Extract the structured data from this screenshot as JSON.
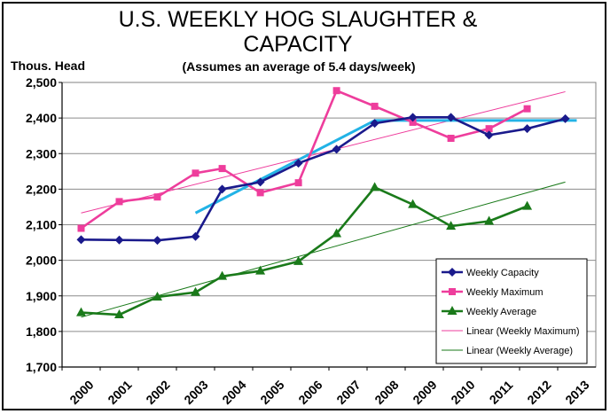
{
  "chart_data": {
    "type": "line",
    "title_line1": "U.S. WEEKLY HOG SLAUGHTER &",
    "title_line2": "CAPACITY",
    "subtitle": "(Assumes an average of 5.4 days/week)",
    "ylabel": "Thous. Head",
    "ylim": [
      1700,
      2500
    ],
    "yticks": [
      "1,700",
      "1,800",
      "1,900",
      "2,000",
      "2,100",
      "2,200",
      "2,300",
      "2,400",
      "2,500"
    ],
    "categories": [
      "2000",
      "2001",
      "2002",
      "2003",
      "2004",
      "2005",
      "2006",
      "2007",
      "2008",
      "2009",
      "2010",
      "2011",
      "2012",
      "2013"
    ],
    "grid": true,
    "legend_position": "bottom-right",
    "series": [
      {
        "name": "Weekly Capacity",
        "color": "#1a1a8c",
        "marker": "diamond",
        "points": [
          [
            0,
            2058
          ],
          [
            1,
            2057
          ],
          [
            2,
            2056
          ],
          [
            3,
            2067
          ],
          [
            3.7,
            2200
          ],
          [
            4.7,
            2220
          ],
          [
            5.7,
            2273
          ],
          [
            6.7,
            2312
          ],
          [
            7.7,
            2385
          ],
          [
            8.7,
            2402
          ],
          [
            9.7,
            2402
          ],
          [
            10.7,
            2352
          ],
          [
            11.7,
            2370
          ],
          [
            12.7,
            2398
          ]
        ]
      },
      {
        "name": "Weekly Maximum",
        "color": "#ee3d9c",
        "marker": "square",
        "points": [
          [
            0,
            2090
          ],
          [
            1,
            2165
          ],
          [
            2,
            2178
          ],
          [
            3,
            2245
          ],
          [
            3.7,
            2258
          ],
          [
            4.7,
            2190
          ],
          [
            5.7,
            2218
          ],
          [
            6.7,
            2477
          ],
          [
            7.7,
            2433
          ],
          [
            8.7,
            2388
          ],
          [
            9.7,
            2343
          ],
          [
            10.7,
            2370
          ],
          [
            11.7,
            2426
          ]
        ]
      },
      {
        "name": "Weekly Average",
        "color": "#1a7a1a",
        "marker": "triangle",
        "points": [
          [
            0,
            1853
          ],
          [
            1,
            1847
          ],
          [
            2,
            1897
          ],
          [
            3,
            1910
          ],
          [
            3.7,
            1955
          ],
          [
            4.7,
            1970
          ],
          [
            5.7,
            1997
          ],
          [
            6.7,
            2075
          ],
          [
            7.7,
            2205
          ],
          [
            8.7,
            2157
          ],
          [
            9.7,
            2096
          ],
          [
            10.7,
            2110
          ],
          [
            11.7,
            2152
          ]
        ]
      },
      {
        "name": "Linear (Weekly Maximum)",
        "color": "#ee3d9c",
        "marker": "none",
        "points": [
          [
            0,
            2133
          ],
          [
            12.7,
            2474
          ]
        ]
      },
      {
        "name": "Linear (Weekly Average)",
        "color": "#1a7a1a",
        "marker": "none",
        "points": [
          [
            0,
            1840
          ],
          [
            12.7,
            2220
          ]
        ]
      },
      {
        "name": "",
        "color": "#22b3e6",
        "marker": "none",
        "points": [
          [
            3,
            2133
          ],
          [
            7.7,
            2393
          ],
          [
            13,
            2393
          ]
        ]
      }
    ]
  }
}
